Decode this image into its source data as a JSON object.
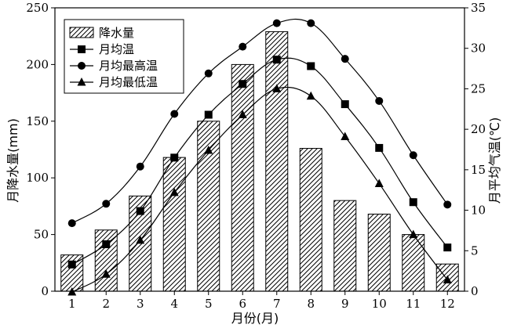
{
  "chart_data": {
    "type": "bar+line",
    "x": [
      1,
      2,
      3,
      4,
      5,
      6,
      7,
      8,
      9,
      10,
      11,
      12
    ],
    "xlabel": "月份(月)",
    "ylabel_left": "月降水量(mm)",
    "ylabel_right": "月平均气温(℃)",
    "ylim_left": [
      0,
      250
    ],
    "ylim_right": [
      0,
      35
    ],
    "yticks_left": [
      0,
      50,
      100,
      150,
      200,
      250
    ],
    "yticks_right": [
      0,
      5,
      10,
      15,
      20,
      25,
      30,
      35
    ],
    "legend_position": "top-left",
    "bar_series": {
      "name": "降水量",
      "axis": "left",
      "values": [
        32,
        54,
        84,
        118,
        150,
        200,
        229,
        126,
        80,
        68,
        50,
        24
      ]
    },
    "line_series": [
      {
        "name": "月均温",
        "axis": "right",
        "marker": "square",
        "values": [
          3.3,
          5.8,
          9.9,
          16.5,
          21.8,
          25.6,
          28.6,
          27.8,
          23.1,
          17.7,
          11.0,
          5.4
        ]
      },
      {
        "name": "月均最高温",
        "axis": "right",
        "marker": "circle",
        "values": [
          8.4,
          10.8,
          15.4,
          21.9,
          26.9,
          30.2,
          33.1,
          33.1,
          28.7,
          23.5,
          16.8,
          10.7
        ]
      },
      {
        "name": "月均最低温",
        "axis": "right",
        "marker": "triangle",
        "values": [
          -0.1,
          2.1,
          6.3,
          12.2,
          17.4,
          21.8,
          25.0,
          24.1,
          19.1,
          13.3,
          7.0,
          1.4
        ]
      }
    ]
  }
}
